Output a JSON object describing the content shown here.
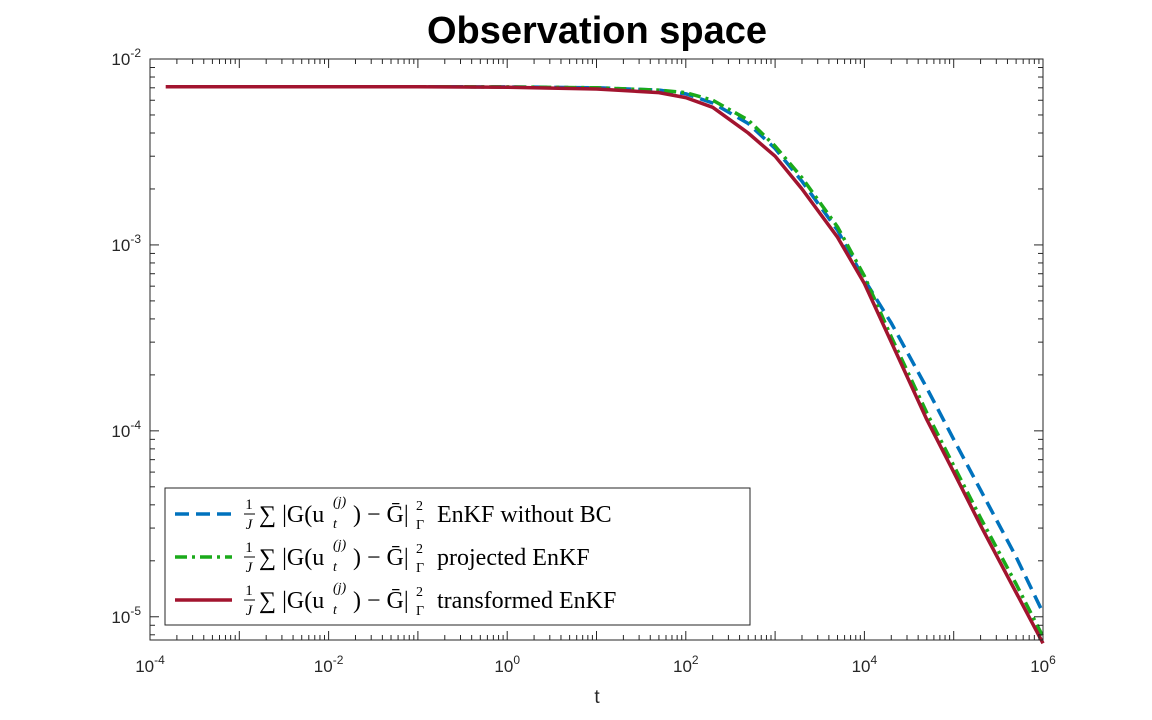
{
  "chart_data": {
    "type": "line",
    "title": "Observation space",
    "xlabel": "t",
    "ylabel": "",
    "xscale": "log",
    "yscale": "log",
    "xlim": [
      0.0001,
      1000000
    ],
    "ylim": [
      7.5e-06,
      0.01
    ],
    "grid": false,
    "legend_position": "bottom-left",
    "x_ticks": [
      {
        "value": 0.0001,
        "base": "10",
        "exp": "-4"
      },
      {
        "value": 0.01,
        "base": "10",
        "exp": "-2"
      },
      {
        "value": 1,
        "base": "10",
        "exp": "0"
      },
      {
        "value": 100,
        "base": "10",
        "exp": "2"
      },
      {
        "value": 10000,
        "base": "10",
        "exp": "4"
      },
      {
        "value": 1000000,
        "base": "10",
        "exp": "6"
      }
    ],
    "y_ticks": [
      {
        "value": 1e-05,
        "base": "10",
        "exp": "-5"
      },
      {
        "value": 0.0001,
        "base": "10",
        "exp": "-4"
      },
      {
        "value": 0.001,
        "base": "10",
        "exp": "-3"
      },
      {
        "value": 0.01,
        "base": "10",
        "exp": "-2"
      }
    ],
    "series": [
      {
        "name": "EnKF without BC",
        "legend_suffix": "EnKF without BC",
        "color": "#0072BD",
        "dash": "dashed",
        "x": [
          0.001,
          0.01,
          0.1,
          1,
          10,
          50,
          100,
          200,
          500,
          1000,
          2000,
          5000,
          10000,
          20000,
          50000,
          100000,
          200000,
          500000,
          1000000
        ],
        "y": [
          0.0071,
          0.0071,
          0.0071,
          0.00708,
          0.007,
          0.0068,
          0.0065,
          0.0058,
          0.0045,
          0.0033,
          0.0022,
          0.0012,
          0.00065,
          0.00038,
          0.00017,
          9e-05,
          4.8e-05,
          2.1e-05,
          1.05e-05
        ]
      },
      {
        "name": "projected EnKF",
        "legend_suffix": "projected EnKF",
        "color": "#1AAA1A",
        "dash": "dashdot",
        "x": [
          0.001,
          0.01,
          0.1,
          1,
          10,
          50,
          100,
          200,
          500,
          1000,
          2000,
          5000,
          10000,
          20000,
          50000,
          100000,
          200000,
          500000,
          1000000
        ],
        "y": [
          0.0071,
          0.0071,
          0.0071,
          0.00708,
          0.007,
          0.0068,
          0.0066,
          0.006,
          0.0047,
          0.0034,
          0.0023,
          0.00125,
          0.00068,
          0.00032,
          0.000125,
          6.5e-05,
          3.4e-05,
          1.5e-05,
          7.8e-06
        ]
      },
      {
        "name": "transformed EnKF",
        "legend_suffix": "transformed EnKF",
        "color": "#A2142F",
        "dash": "solid",
        "x": [
          0.00015,
          0.001,
          0.01,
          0.1,
          1,
          10,
          50,
          100,
          200,
          500,
          1000,
          2000,
          5000,
          10000,
          20000,
          50000,
          100000,
          200000,
          500000,
          1000000
        ],
        "y": [
          0.0071,
          0.0071,
          0.0071,
          0.0071,
          0.00705,
          0.0069,
          0.0066,
          0.0062,
          0.0055,
          0.004,
          0.003,
          0.002,
          0.0011,
          0.00062,
          0.0003,
          0.000115,
          6e-05,
          3.1e-05,
          1.35e-05,
          7.2e-06
        ]
      }
    ]
  }
}
